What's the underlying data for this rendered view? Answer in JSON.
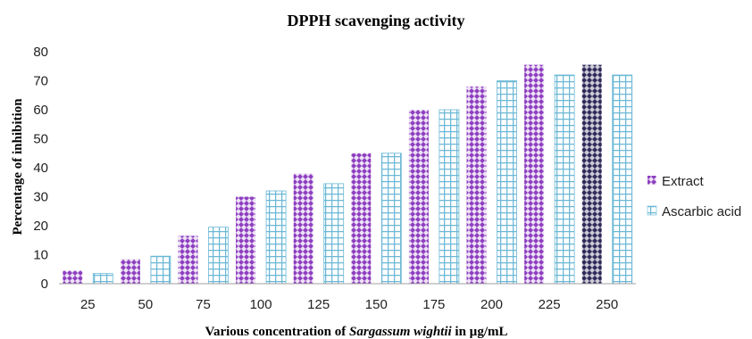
{
  "chart_data": {
    "type": "bar",
    "title": "DPPH scavenging activity",
    "xlabel_prefix": "Various concentration of ",
    "xlabel_italic": "Sargassum wightii",
    "xlabel_suffix": " in µg/mL",
    "ylabel": "Percentage of inhibition",
    "ylim": [
      0,
      80
    ],
    "yticks": [
      0,
      10,
      20,
      30,
      40,
      50,
      60,
      70,
      80
    ],
    "grid": false,
    "legend_position": "right",
    "categories": [
      "25",
      "50",
      "75",
      "100",
      "125",
      "150",
      "175",
      "200",
      "225",
      "250"
    ],
    "series": [
      {
        "name": "Extract",
        "color": "#8E3FC0",
        "pattern": "diamond-checker",
        "values": [
          4.5,
          8.5,
          16.5,
          30,
          38,
          45,
          60,
          68,
          75.5,
          75.5
        ]
      },
      {
        "name": "Ascarbic acid",
        "color": "#6BB8D6",
        "pattern": "grid",
        "values": [
          3.5,
          9.5,
          19.5,
          32,
          34.5,
          45,
          60,
          70,
          72,
          72
        ]
      }
    ]
  }
}
